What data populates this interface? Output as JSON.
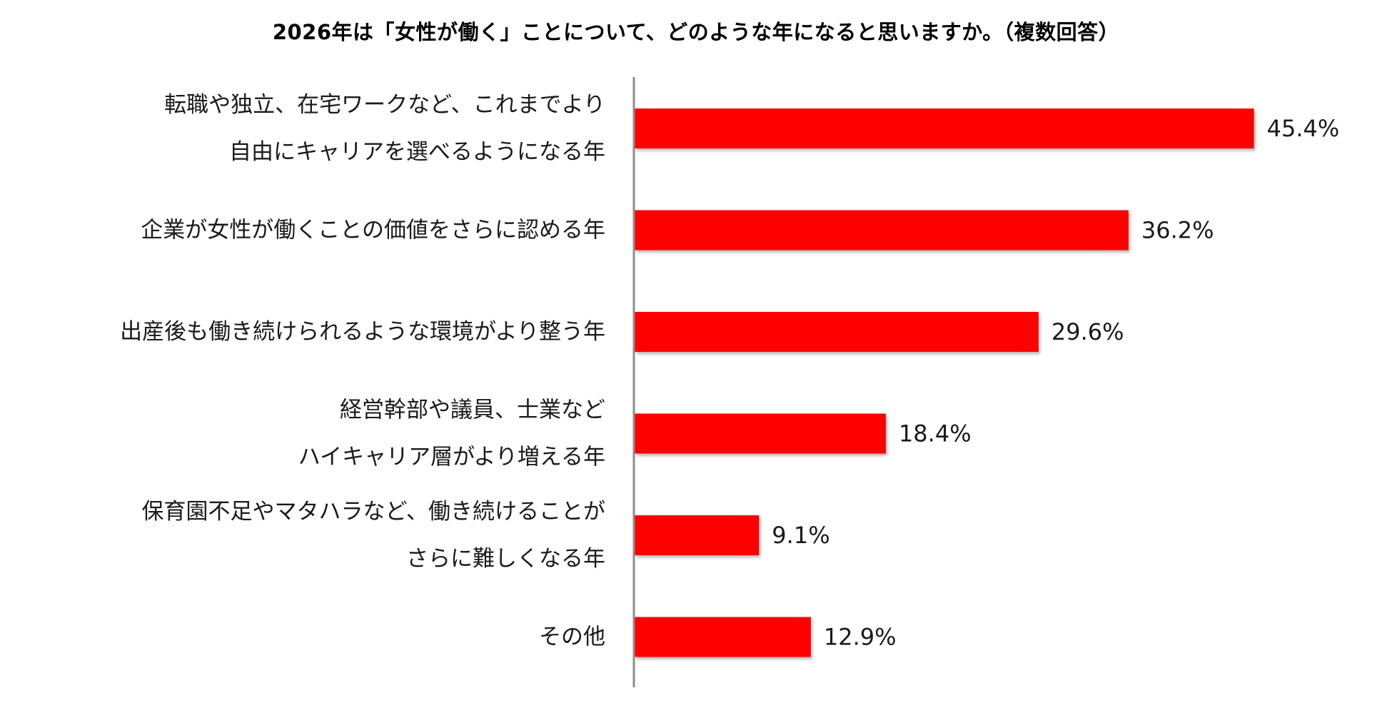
{
  "chart_data": {
    "type": "bar",
    "orientation": "horizontal",
    "title": "2026年は「女性が働く」ことについて、どのような年になると思いますか。（複数回答）",
    "categories": [
      [
        "転職や独立、在宅ワークなど、これまでより",
        "自由にキャリアを選べるようになる年"
      ],
      [
        "企業が女性が働くことの価値をさらに認める年"
      ],
      [
        "出産後も働き続けられるような環境がより整う年"
      ],
      [
        "経営幹部や議員、士業など",
        "ハイキャリア層がより増える年"
      ],
      [
        "保育園不足やマタハラなど、働き続けることが",
        "さらに難しくなる年"
      ],
      [
        "その他"
      ]
    ],
    "values": [
      45.4,
      36.2,
      29.6,
      18.4,
      9.1,
      12.9
    ],
    "value_labels": [
      "45.4%",
      "36.2%",
      "29.6%",
      "18.4%",
      "9.1%",
      "12.9%"
    ],
    "xlim": [
      0,
      50
    ],
    "grid": false,
    "legend": "none",
    "colors": {
      "bar": "#ff0000",
      "bar_shadow": "#b3b3b3",
      "axis": "#8c8c8c",
      "text": "#1a1a1a"
    }
  }
}
